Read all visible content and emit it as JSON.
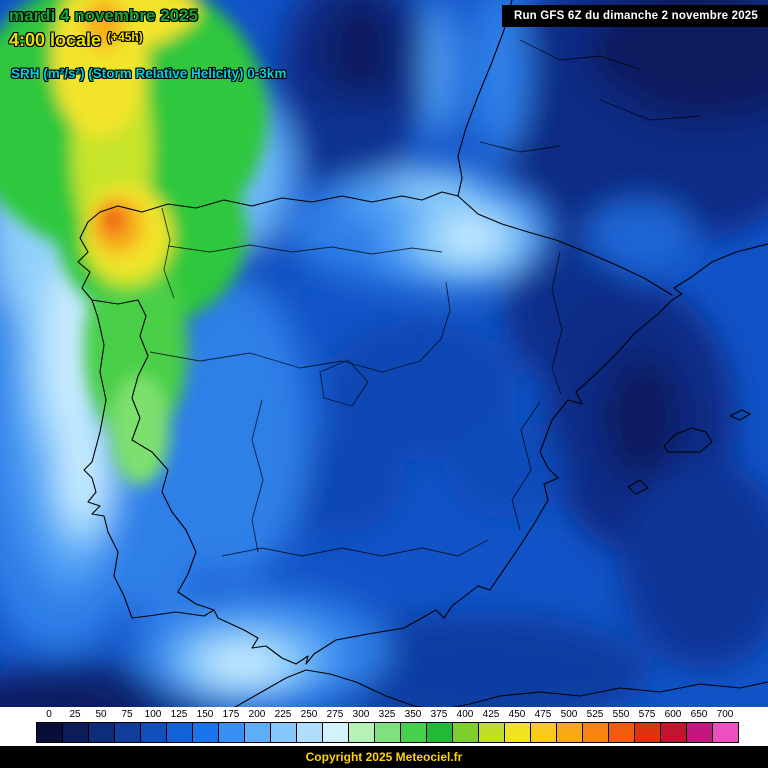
{
  "header": {
    "date_line": "mardi 4 novembre 2025",
    "time_line": "4:00 locale",
    "forecast_offset": "(+45h)",
    "variable_label": "SRH (m²/s²) (Storm Relative Helicity) 0-3km",
    "run_info": "Run GFS 6Z du dimanche 2 novembre 2025"
  },
  "legend": {
    "ticks": [
      "0",
      "25",
      "50",
      "75",
      "100",
      "125",
      "150",
      "175",
      "200",
      "225",
      "250",
      "275",
      "300",
      "325",
      "350",
      "375",
      "400",
      "425",
      "450",
      "475",
      "500",
      "525",
      "550",
      "575",
      "600",
      "650",
      "700"
    ],
    "colors": [
      "#090e38",
      "#0b1c58",
      "#0d2c7a",
      "#0f3e9c",
      "#1150bc",
      "#1362da",
      "#1a75ec",
      "#3791f4",
      "#5dadf7",
      "#85c7fa",
      "#aedefc",
      "#d4f1fe",
      "#b5f2b8",
      "#7fe07e",
      "#46d04e",
      "#20ba36",
      "#7ecf2e",
      "#c0e028",
      "#f0e422",
      "#f8ca1c",
      "#f9a816",
      "#f88310",
      "#f15b0c",
      "#df3310",
      "#c01530",
      "#c2187e",
      "#ee4fc0"
    ]
  },
  "footer": {
    "copyright": "Copyright 2025 Meteociel.fr"
  },
  "colors": {
    "date-text": "#14a832",
    "time-text": "#e8e000",
    "offset-text": "#ffe000",
    "variable-text": "#00cfe0",
    "run-bg": "#000000",
    "run-text": "#ffffff",
    "legend-bg": "#ffffff",
    "footer-bg": "#000000",
    "copyright-text": "#ffd200",
    "map-base": "#1254c8"
  }
}
